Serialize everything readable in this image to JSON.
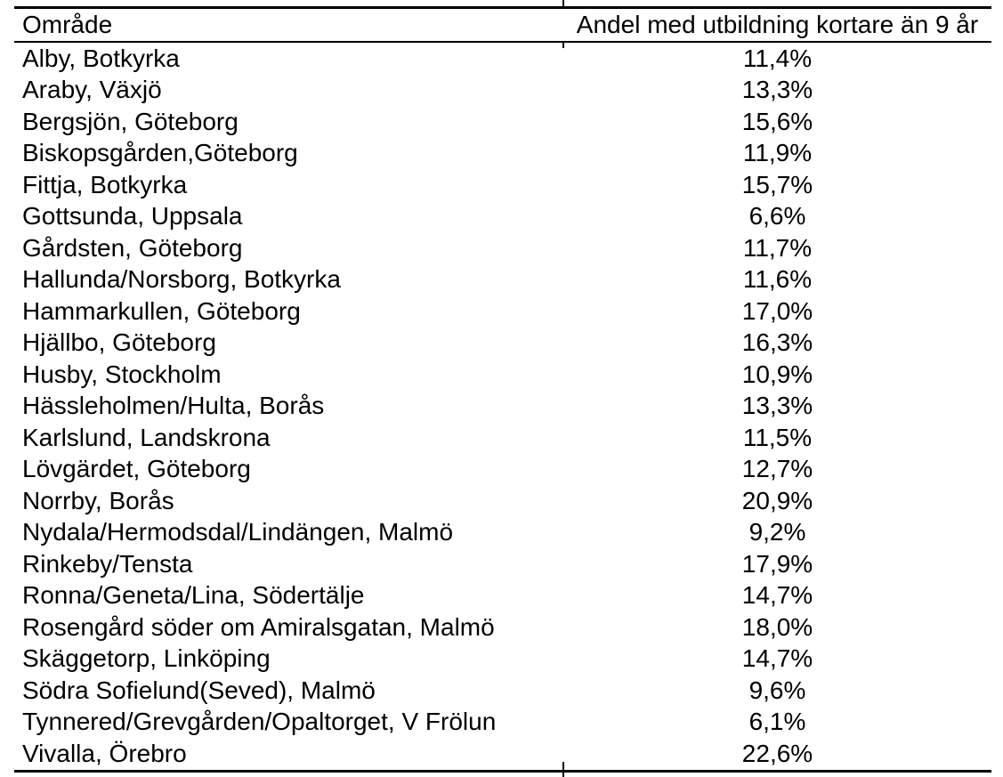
{
  "colors": {
    "text": "#000000",
    "background": "#ffffff",
    "rule": "#000000"
  },
  "table": {
    "columns": [
      {
        "label": "Område"
      },
      {
        "label": "Andel med utbildning kortare än 9 år"
      }
    ],
    "rows": [
      {
        "area": "Alby, Botkyrka",
        "value": "11,4%"
      },
      {
        "area": "Araby, Växjö",
        "value": "13,3%"
      },
      {
        "area": "Bergsjön, Göteborg",
        "value": "15,6%"
      },
      {
        "area": "Biskopsgården,Göteborg",
        "value": "11,9%"
      },
      {
        "area": "Fittja, Botkyrka",
        "value": "15,7%"
      },
      {
        "area": "Gottsunda, Uppsala",
        "value": "6,6%"
      },
      {
        "area": "Gårdsten, Göteborg",
        "value": "11,7%"
      },
      {
        "area": "Hallunda/Norsborg, Botkyrka",
        "value": "11,6%"
      },
      {
        "area": "Hammarkullen, Göteborg",
        "value": "17,0%"
      },
      {
        "area": "Hjällbo, Göteborg",
        "value": "16,3%"
      },
      {
        "area": "Husby, Stockholm",
        "value": "10,9%"
      },
      {
        "area": "Hässleholmen/Hulta, Borås",
        "value": "13,3%"
      },
      {
        "area": "Karlslund, Landskrona",
        "value": "11,5%"
      },
      {
        "area": "Lövgärdet, Göteborg",
        "value": "12,7%"
      },
      {
        "area": "Norrby, Borås",
        "value": "20,9%"
      },
      {
        "area": "Nydala/Hermodsdal/Lindängen, Malmö",
        "value": "9,2%"
      },
      {
        "area": "Rinkeby/Tensta",
        "value": "17,9%"
      },
      {
        "area": "Ronna/Geneta/Lina, Södertälje",
        "value": "14,7%"
      },
      {
        "area": "Rosengård söder om Amiralsgatan, Malmö",
        "value": "18,0%"
      },
      {
        "area": "Skäggetorp, Linköping",
        "value": "14,7%"
      },
      {
        "area": "Södra Sofielund(Seved), Malmö",
        "value": "9,6%"
      },
      {
        "area": "Tynnered/Grevgården/Opaltorget, V Frölun",
        "value": "6,1%"
      },
      {
        "area": "Vivalla, Örebro",
        "value": "22,6%"
      }
    ]
  }
}
